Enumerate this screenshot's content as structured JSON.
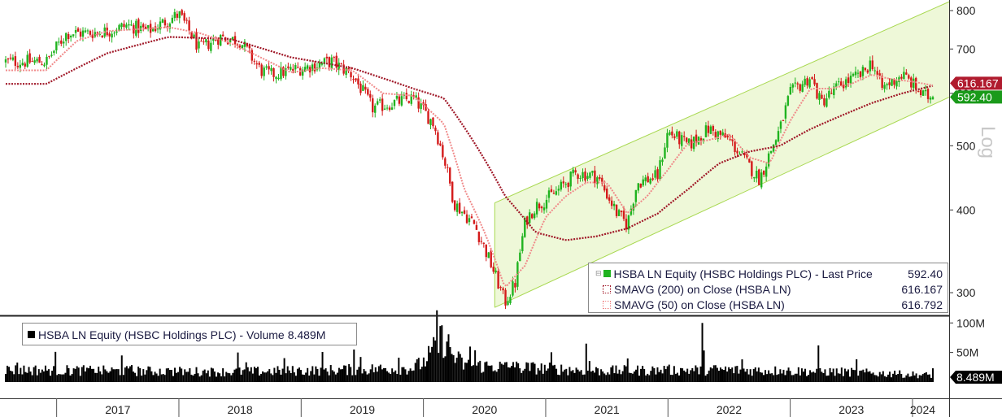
{
  "chart_data": [
    {
      "type": "candlestick",
      "series_label": "HSBA LN Equity (HSBC Holdings PLC) - Last Price",
      "series": [
        {
          "name": "HSBA LN Equity (HSBC Holdings PLC) - Last Price",
          "value": "592.40",
          "color_up": "#1fb31f",
          "color_down": "#d41a1a"
        },
        {
          "name": "SMAVG (200)  on Close (HSBA LN)",
          "value": "616.167",
          "color": "#a01828"
        },
        {
          "name": "SMAVG (50)  on Close (HSBA LN)",
          "value": "616.792",
          "color": "#f08a8a"
        }
      ],
      "price_path": [
        [
          "2016-12",
          670
        ],
        [
          "2017-02",
          740
        ],
        [
          "2017-04",
          740
        ],
        [
          "2017-06",
          745
        ],
        [
          "2017-08",
          760
        ],
        [
          "2017-10",
          745
        ],
        [
          "2018-01",
          790
        ],
        [
          "2018-03",
          700
        ],
        [
          "2018-05",
          730
        ],
        [
          "2018-07",
          720
        ],
        [
          "2018-09",
          650
        ],
        [
          "2018-10",
          640
        ],
        [
          "2018-12",
          650
        ],
        [
          "2019-02",
          660
        ],
        [
          "2019-04",
          670
        ],
        [
          "2019-06",
          640
        ],
        [
          "2019-08",
          570
        ],
        [
          "2019-10",
          580
        ],
        [
          "2019-12",
          590
        ],
        [
          "2020-02",
          540
        ],
        [
          "2020-03",
          480
        ],
        [
          "2020-04",
          410
        ],
        [
          "2020-06",
          380
        ],
        [
          "2020-08",
          320
        ],
        [
          "2020-09",
          290
        ],
        [
          "2020-10",
          310
        ],
        [
          "2020-11",
          385
        ],
        [
          "2020-12",
          405
        ],
        [
          "2021-02",
          425
        ],
        [
          "2021-04",
          455
        ],
        [
          "2021-06",
          450
        ],
        [
          "2021-08",
          395
        ],
        [
          "2021-09",
          380
        ],
        [
          "2021-10",
          440
        ],
        [
          "2021-12",
          450
        ],
        [
          "2022-01",
          525
        ],
        [
          "2022-03",
          500
        ],
        [
          "2022-05",
          530
        ],
        [
          "2022-07",
          510
        ],
        [
          "2022-09",
          465
        ],
        [
          "2022-10",
          445
        ],
        [
          "2022-12",
          530
        ],
        [
          "2023-01",
          600
        ],
        [
          "2023-03",
          635
        ],
        [
          "2023-04",
          580
        ],
        [
          "2023-06",
          620
        ],
        [
          "2023-08",
          640
        ],
        [
          "2023-09",
          670
        ],
        [
          "2023-10",
          610
        ],
        [
          "2023-12",
          640
        ],
        [
          "2024-01",
          620
        ],
        [
          "2024-02",
          595
        ],
        [
          "2024-03",
          592.4
        ]
      ],
      "sma200_path": [
        [
          "2016-12",
          620
        ],
        [
          "2017-06",
          690
        ],
        [
          "2017-12",
          730
        ],
        [
          "2018-06",
          725
        ],
        [
          "2018-12",
          680
        ],
        [
          "2019-06",
          655
        ],
        [
          "2019-12",
          610
        ],
        [
          "2020-03",
          590
        ],
        [
          "2020-06",
          505
        ],
        [
          "2020-09",
          420
        ],
        [
          "2020-12",
          370
        ],
        [
          "2021-03",
          360
        ],
        [
          "2021-06",
          365
        ],
        [
          "2021-09",
          375
        ],
        [
          "2021-12",
          395
        ],
        [
          "2022-03",
          430
        ],
        [
          "2022-06",
          470
        ],
        [
          "2022-09",
          490
        ],
        [
          "2022-12",
          500
        ],
        [
          "2023-03",
          530
        ],
        [
          "2023-06",
          555
        ],
        [
          "2023-09",
          580
        ],
        [
          "2023-12",
          600
        ],
        [
          "2024-03",
          616.167
        ]
      ],
      "sma50_path": [
        [
          "2016-12",
          650
        ],
        [
          "2017-03",
          720
        ],
        [
          "2017-06",
          745
        ],
        [
          "2017-09",
          750
        ],
        [
          "2017-12",
          755
        ],
        [
          "2018-03",
          740
        ],
        [
          "2018-06",
          715
        ],
        [
          "2018-09",
          680
        ],
        [
          "2018-12",
          645
        ],
        [
          "2019-03",
          655
        ],
        [
          "2019-06",
          650
        ],
        [
          "2019-09",
          600
        ],
        [
          "2019-12",
          595
        ],
        [
          "2020-03",
          540
        ],
        [
          "2020-05",
          430
        ],
        [
          "2020-07",
          370
        ],
        [
          "2020-09",
          305
        ],
        [
          "2020-11",
          330
        ],
        [
          "2021-01",
          390
        ],
        [
          "2021-03",
          420
        ],
        [
          "2021-05",
          440
        ],
        [
          "2021-07",
          440
        ],
        [
          "2021-09",
          395
        ],
        [
          "2021-11",
          420
        ],
        [
          "2022-01",
          460
        ],
        [
          "2022-03",
          505
        ],
        [
          "2022-05",
          510
        ],
        [
          "2022-07",
          520
        ],
        [
          "2022-09",
          480
        ],
        [
          "2022-11",
          470
        ],
        [
          "2023-01",
          545
        ],
        [
          "2023-03",
          610
        ],
        [
          "2023-05",
          610
        ],
        [
          "2023-07",
          620
        ],
        [
          "2023-09",
          640
        ],
        [
          "2023-11",
          630
        ],
        [
          "2024-01",
          625
        ],
        [
          "2024-03",
          616.792
        ]
      ],
      "trend_channel": {
        "upper": [
          [
            "2020-08",
            410
          ],
          [
            "2024-03",
            825
          ]
        ],
        "lower": [
          [
            "2020-08",
            285
          ],
          [
            "2024-03",
            592
          ]
        ],
        "fill": "#eef8d8",
        "stroke": "#a8d850"
      },
      "y_scale": "log",
      "ylim": [
        278,
        830
      ],
      "y_ticks": [
        300,
        400,
        500,
        600,
        700,
        800
      ],
      "y_axis_title": "Log",
      "last_price_label": "592.40",
      "sma200_label": "616.167",
      "xlim": [
        "2016-08",
        "2024-03"
      ]
    },
    {
      "type": "bar",
      "series_label": "HSBA LN Equity (HSBC Holdings PLC) - Volume",
      "series": [
        {
          "name": "HSBA LN Equity (HSBC Holdings PLC) - Volume",
          "value": "8.489M",
          "color": "#000000"
        }
      ],
      "typical_volume_M": 20,
      "volume_path_M": [
        [
          "2016-08",
          22
        ],
        [
          "2017-06",
          20
        ],
        [
          "2018-06",
          18
        ],
        [
          "2019-06",
          22
        ],
        [
          "2019-12",
          25
        ],
        [
          "2020-01",
          35
        ],
        [
          "2020-02",
          55
        ],
        [
          "2020-03",
          80
        ],
        [
          "2020-04",
          45
        ],
        [
          "2020-05",
          30
        ],
        [
          "2020-12",
          25
        ],
        [
          "2021-06",
          20
        ],
        [
          "2022-06",
          22
        ],
        [
          "2023-06",
          18
        ],
        [
          "2024-03",
          12
        ]
      ],
      "spike_volumes_M": [
        45,
        50,
        55,
        60,
        65,
        100,
        62
      ],
      "y_ticks_M": [
        50,
        100
      ],
      "y_tick_labels": [
        "50M",
        "100M"
      ],
      "ylim_M": [
        0,
        110
      ],
      "last_label": "8.489M"
    }
  ],
  "x_axis": {
    "year_labels": [
      "2017",
      "2018",
      "2019",
      "2020",
      "2021",
      "2022",
      "2023",
      "2024"
    ]
  }
}
